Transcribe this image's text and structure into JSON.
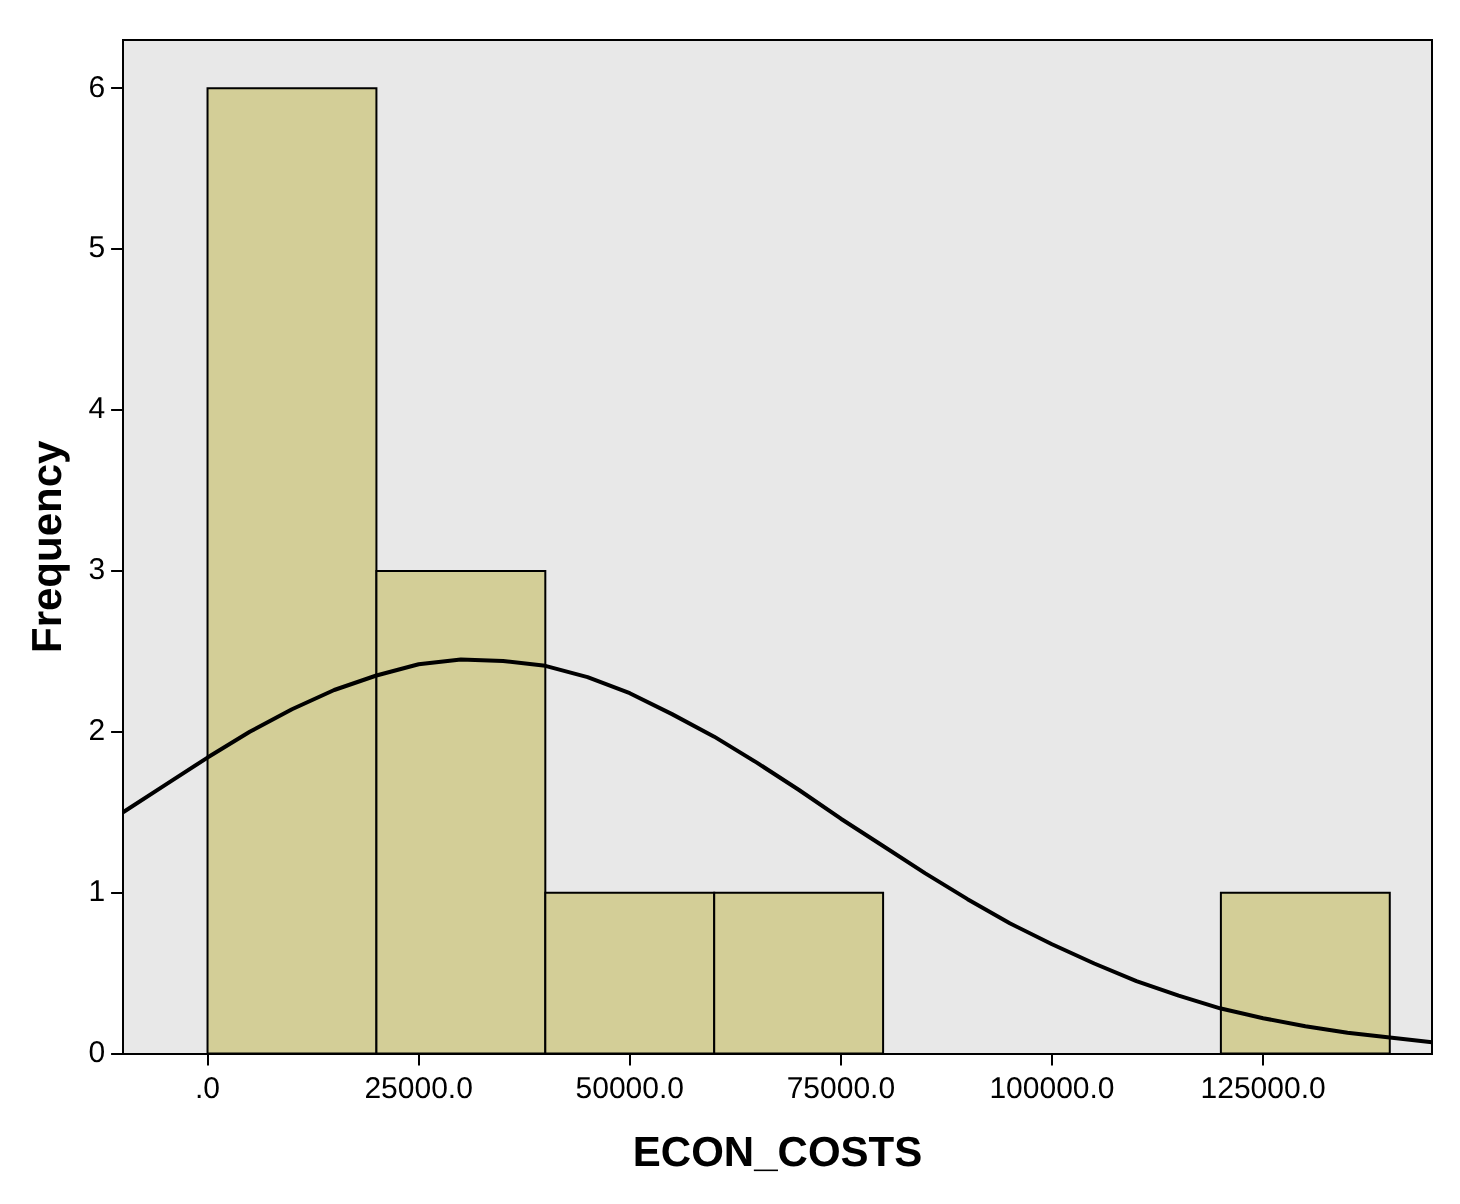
{
  "chart_data": {
    "type": "histogram",
    "xlabel": "ECON_COSTS",
    "ylabel": "Frequency",
    "bins": [
      0,
      20000,
      40000,
      60000,
      80000,
      100000,
      120000,
      140000
    ],
    "values": [
      6,
      3,
      1,
      1,
      0,
      0,
      1
    ],
    "color": "#d3ce97",
    "series": [
      {
        "type": "line",
        "color": "#000000",
        "x": [
          -10000,
          -5000,
          0,
          5000,
          10000,
          15000,
          20000,
          25000,
          30000,
          35000,
          40000,
          45000,
          50000,
          55000,
          60000,
          65000,
          70000,
          75000,
          80000,
          85000,
          90000,
          95000,
          100000,
          105000,
          110000,
          115000,
          120000,
          125000,
          130000,
          135000,
          140000,
          145000
        ],
        "values": [
          1.5,
          1.67,
          1.84,
          2.0,
          2.14,
          2.26,
          2.35,
          2.42,
          2.45,
          2.44,
          2.41,
          2.34,
          2.24,
          2.11,
          1.97,
          1.81,
          1.64,
          1.46,
          1.29,
          1.12,
          0.96,
          0.81,
          0.68,
          0.56,
          0.45,
          0.36,
          0.28,
          0.22,
          0.17,
          0.13,
          0.1,
          0.07
        ]
      }
    ],
    "xlim": [
      -10000,
      145000
    ],
    "xticks": [
      {
        "value": 0,
        "label": ".0"
      },
      {
        "value": 25000,
        "label": "25000.0"
      },
      {
        "value": 50000,
        "label": "50000.0"
      },
      {
        "value": 75000,
        "label": "75000.0"
      },
      {
        "value": 100000,
        "label": "100000.0"
      },
      {
        "value": 125000,
        "label": "125000.0"
      }
    ],
    "ylim": [
      0,
      6.3
    ],
    "yticks": [
      0,
      1,
      2,
      3,
      4,
      5,
      6
    ],
    "grid": false,
    "legend": false,
    "marker": "none",
    "line_style": "solid"
  }
}
